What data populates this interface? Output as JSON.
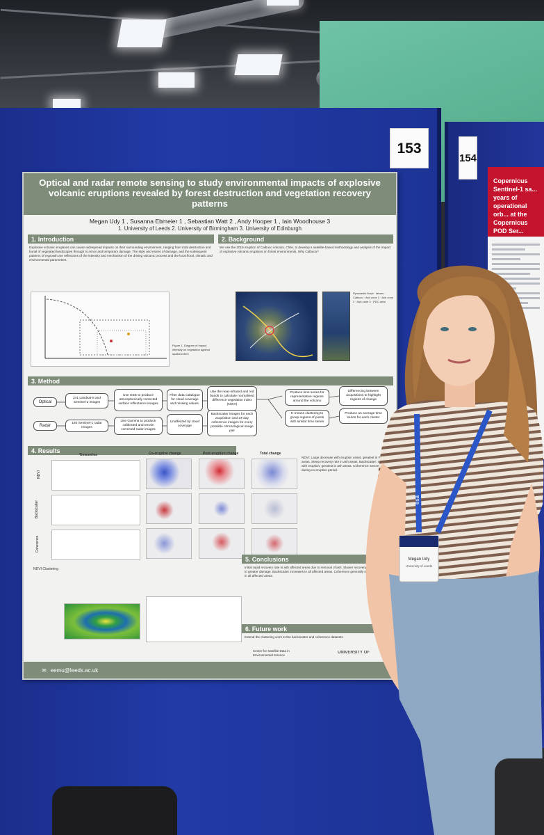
{
  "booth_numbers": {
    "main": "153",
    "right": "154"
  },
  "right_poster": {
    "title": "Copernicus Sentinel-1 sa... years of operational orb... at the Copernicus POD Ser..."
  },
  "poster": {
    "title": "Optical and radar remote sensing to study environmental impacts of explosive volcanic eruptions revealed by forest destruction and vegetation recovery patterns",
    "authors": "Megan Udy 1 , Susanna Ebmeier 1 , Sebastian Watt 2 , Andy Hooper 1 , Iain Woodhouse 3",
    "affiliations": "1. University of Leeds   2. University of Birmingham   3. University of Edinburgh",
    "sections": {
      "introduction": "1. Introduction",
      "background": "2. Background",
      "method": "3. Method",
      "results": "4. Results",
      "conclusions": "5. Conclusions",
      "future_work": "6. Future work"
    },
    "intro_text": "Explosive volcanic eruptions can cause widespread impacts on their surrounding environment, ranging from total destruction and burial of vegetated landscapes through to minor and temporary damage. The style and extent of damage, and the subsequent patterns of regrowth are reflections of the intensity and mechanism of the driving volcanic process and the local floral, climatic and environmental parameters.",
    "background_text": "We use the 2015 eruption of Calbuco volcano, Chile, to develop a satellite-based methodology and analysis of the impact of explosive volcanic eruptions on forest environments. Why Calbuco?",
    "method": {
      "optical": "Optical",
      "radar": "Radar",
      "boxes": [
        "241 Landsat-8 and Sentinel-2 images",
        "Use GEE to produce atmospherically corrected surface reflectance images",
        "Filter data catalogue for cloud coverage and missing values.",
        "Use the near-infrared and red bands to calculate normalised difference vegetation index (NDVI)",
        "Produce time series for representative regions around the volcano",
        "Differencing between acquisitions to highlight regions of change",
        "180 Sentinel-1 radar images",
        "Use Gamma to produce calibrated and terrain corrected radar images",
        "Unaffected by cloud coverage",
        "Backscatter images for each acquisition and 24-day coherence images for every possible chronological image pair",
        "K-means clustering to group regions of pixels with similar time series",
        "Produce an average time series for each cluster"
      ]
    },
    "results_labels": [
      "Timeseries",
      "Co-eruptive change",
      "Post-eruption change",
      "Total change",
      "NDVI",
      "Backscatter",
      "Coherence"
    ],
    "ndvi_clustering": "NDVI Clustering",
    "future_text": "Extend the clustering work to the backscatter and coherence datasets",
    "contact": "eemu@leeds.ac.uk",
    "logo_text": "Centre for Satellite Data in Environmental Science",
    "university": "UNIVERSITY OF"
  },
  "badge": {
    "name": "Megan Udy",
    "org": "University of Leeds",
    "lanyard": "esa"
  },
  "colors": {
    "board": "#213aa6",
    "poster_header": "#7e8c79",
    "wall": "#5bb394"
  }
}
